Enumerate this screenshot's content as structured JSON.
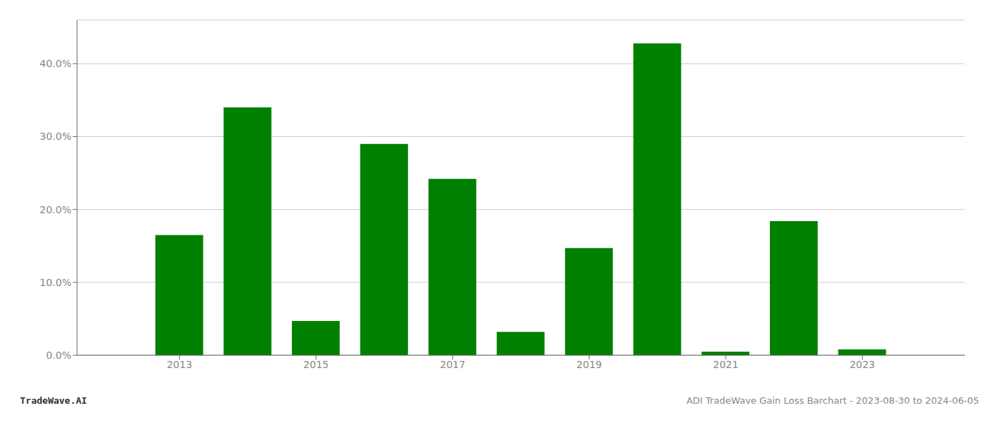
{
  "chart_data": {
    "type": "bar",
    "x": [
      2013,
      2014,
      2015,
      2016,
      2017,
      2018,
      2019,
      2020,
      2021,
      2022,
      2023
    ],
    "values": [
      0.165,
      0.34,
      0.047,
      0.29,
      0.242,
      0.032,
      0.147,
      0.428,
      0.005,
      0.184,
      0.008
    ],
    "color": "#008000",
    "xlim": [
      2011.5,
      2024.5
    ],
    "xticks": [
      2013,
      2015,
      2017,
      2019,
      2021,
      2023
    ],
    "ylim": [
      0,
      0.46
    ],
    "yticks": [
      {
        "value": 0.0,
        "label": "0.0%"
      },
      {
        "value": 0.1,
        "label": "10.0%"
      },
      {
        "value": 0.2,
        "label": "20.0%"
      },
      {
        "value": 0.3,
        "label": "30.0%"
      },
      {
        "value": 0.4,
        "label": "40.0%"
      }
    ],
    "grid": true,
    "annotations": [
      "TradeWave.AI",
      "ADI TradeWave Gain Loss Barchart - 2023-08-30 to 2024-06-05"
    ]
  }
}
